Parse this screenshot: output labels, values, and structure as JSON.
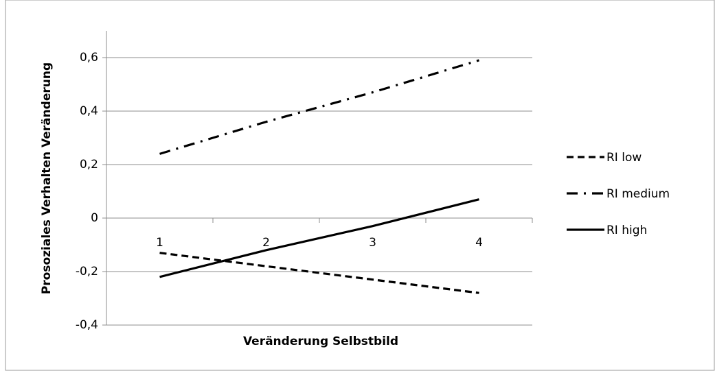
{
  "chart_data": {
    "type": "line",
    "y_label": "Prosoziales Verhalten Veränderung",
    "x_label": "Veränderung Selbstbild",
    "categories": [
      "1",
      "2",
      "3",
      "4"
    ],
    "series": [
      {
        "name": "RI low",
        "color": "#000000",
        "dash": "10,6",
        "values": [
          -0.13,
          -0.18,
          -0.23,
          -0.28
        ]
      },
      {
        "name": "RI medium",
        "color": "#000000",
        "dash": "16,9,3,9",
        "values": [
          0.24,
          0.36,
          0.47,
          0.59
        ]
      },
      {
        "name": "RI high",
        "color": "#000000",
        "dash": "none",
        "values": [
          -0.22,
          -0.12,
          -0.03,
          0.07
        ]
      }
    ],
    "ylim": [
      -0.4,
      0.7
    ],
    "yticks": [
      {
        "value": -0.4,
        "label": "-0,4"
      },
      {
        "value": -0.2,
        "label": "-0,2"
      },
      0,
      {
        "value": 0.2,
        "label": "0,2"
      },
      {
        "value": 0.4,
        "label": "0,4"
      },
      {
        "value": 0.6,
        "label": "0,6"
      }
    ],
    "grid": true,
    "legend": "right"
  }
}
